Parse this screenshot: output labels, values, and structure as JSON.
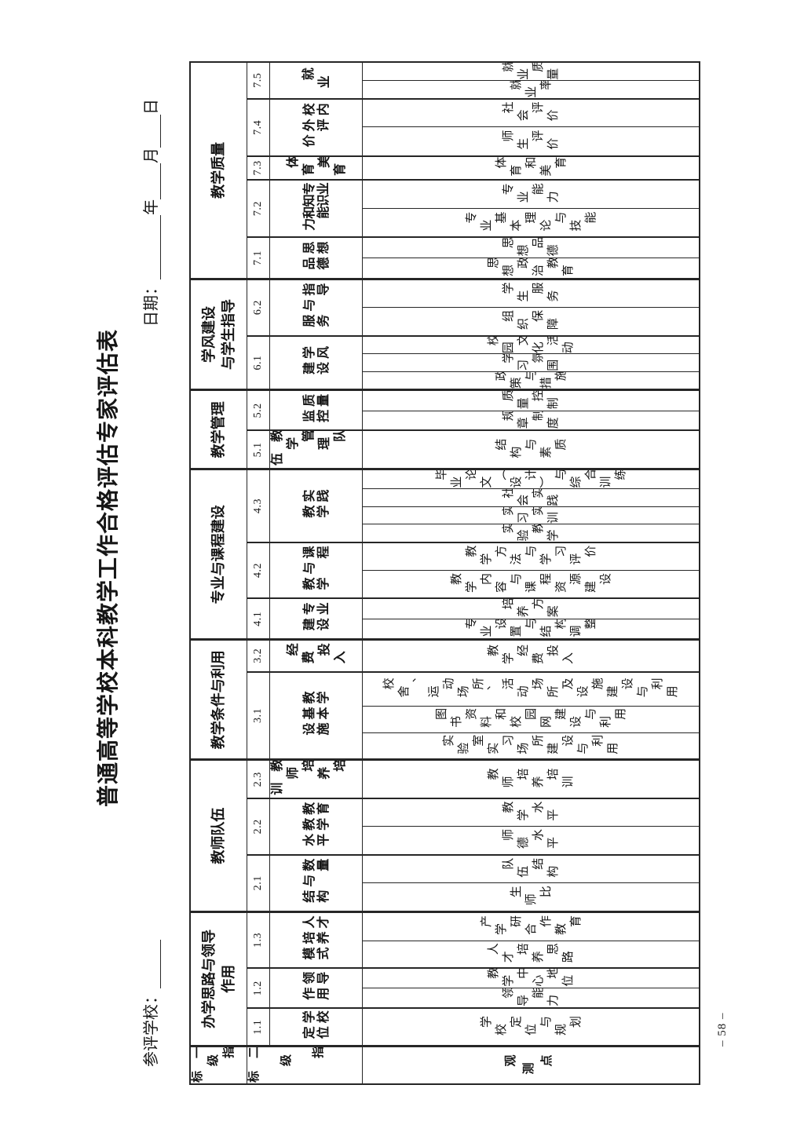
{
  "page": {
    "title": "普通高等学校本科教学工作合格评估专家评估表",
    "school_label": "参评学校：",
    "date_label": "日期：",
    "year_label": "年",
    "month_label": "月",
    "day_label": "日",
    "page_number": "– 58 –"
  },
  "table": {
    "headers": {
      "level1": "一级指标",
      "level2": "二级指标",
      "observation": "观测点"
    },
    "groups": [
      {
        "name": [
          "办学思路与领导",
          "作用"
        ],
        "indicators": [
          {
            "code": "1.1",
            "level2": [
              "学校",
              "定位"
            ],
            "obs": [
              "学校定位与规划"
            ]
          },
          {
            "code": "1.2",
            "level2": [
              "领导",
              "作用"
            ],
            "obs": [
              "领导能力",
              "教学中心地位"
            ]
          },
          {
            "code": "1.3",
            "level2": [
              "人才",
              "培养",
              "模式"
            ],
            "obs": [
              "人才培养思路",
              "产学研合作教育"
            ]
          }
        ]
      },
      {
        "name": "教师队伍",
        "indicators": [
          {
            "code": "2.1",
            "level2": [
              "数量",
              "与",
              "结构"
            ],
            "obs": [
              "生师比",
              "队伍结构"
            ]
          },
          {
            "code": "2.2",
            "level2": [
              "教育",
              "教学",
              "水平"
            ],
            "obs": [
              "师德水平",
              "教学水平"
            ]
          },
          {
            "code": "2.3",
            "level2": "教师培养培训",
            "obs": [
              "教师培养培训"
            ]
          }
        ]
      },
      {
        "name": "教学条件与利用",
        "indicators": [
          {
            "code": "3.1",
            "level2": [
              "教学",
              "基本",
              "设施"
            ],
            "obs": [
              "实验室实习场所建设与利用",
              "图书资料和校园网建设与利用",
              "校舍、运动场所、活动场所及设施建设与利用"
            ]
          },
          {
            "code": "3.2",
            "level2": "经费投入",
            "obs": [
              "教学经费投入"
            ]
          }
        ]
      },
      {
        "name": "专业与课程建设",
        "indicators": [
          {
            "code": "4.1",
            "level2": [
              "专业",
              "建设"
            ],
            "obs": [
              "专业设置与结构调整",
              "培养方案"
            ]
          },
          {
            "code": "4.2",
            "level2": [
              "课程",
              "与",
              "教学"
            ],
            "obs": [
              "教学内容与课程资源建设",
              "教学方法与学习评价"
            ]
          },
          {
            "code": "4.3",
            "level2": [
              "实践",
              "教学"
            ],
            "obs": [
              "实验教学",
              "实习实训",
              "社会实践",
              "毕业论文（设计）与综合训练"
            ]
          }
        ]
      },
      {
        "name": "教学管理",
        "indicators": [
          {
            "code": "5.1",
            "level2": "教学管理队伍",
            "obs": [
              "结构与素质"
            ]
          },
          {
            "code": "5.2",
            "level2": [
              "质量",
              "监控"
            ],
            "obs": [
              "规章制度",
              "质量控制"
            ]
          }
        ]
      },
      {
        "name": [
          "学风建设",
          "与学生指导"
        ],
        "indicators": [
          {
            "code": "6.1",
            "level2": [
              "学风",
              "建设"
            ],
            "obs": [
              "政策与措施",
              "学习氛围",
              "校园文化活动"
            ]
          },
          {
            "code": "6.2",
            "level2": [
              "指导",
              "与",
              "服务"
            ],
            "obs": [
              "组织保障",
              "学生服务"
            ]
          }
        ]
      },
      {
        "name": "教学质量",
        "indicators": [
          {
            "code": "7.1",
            "level2": [
              "思想",
              "品德"
            ],
            "obs": [
              "思想政治教育",
              "思想品德"
            ]
          },
          {
            "code": "7.2",
            "level2": [
              "专业",
              "知识",
              "和能",
              "力"
            ],
            "obs": [
              "专业基本理论与技能",
              "专业能力"
            ]
          },
          {
            "code": "7.3",
            "level2": "体育美育",
            "obs": [
              "体育和美育"
            ]
          },
          {
            "code": "7.4",
            "level2": [
              "校内",
              "外评",
              "价"
            ],
            "obs": [
              "师生评价",
              "社会评价"
            ]
          },
          {
            "code": "7.5",
            "level2": "就业",
            "obs": [
              "就业率",
              "就业质量"
            ]
          }
        ]
      }
    ]
  }
}
